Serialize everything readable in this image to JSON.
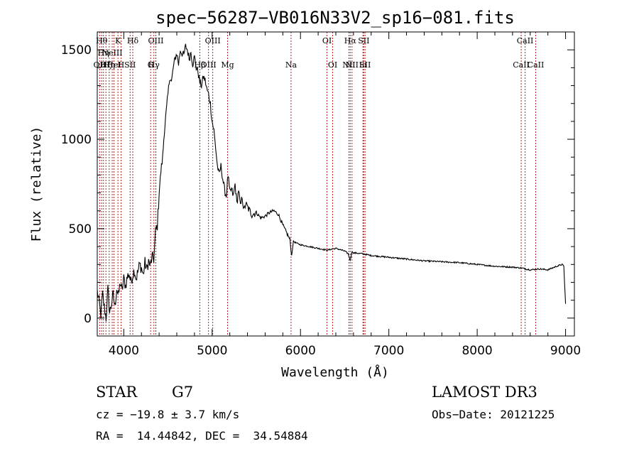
{
  "chart_data": {
    "type": "line",
    "title": "spec−56287−VB016N33V2_sp16−081.fits",
    "xlabel": "Wavelength (Å)",
    "ylabel": "Flux (relative)",
    "xlim": [
      3700,
      9100
    ],
    "ylim": [
      -100,
      1600
    ],
    "xticks": [
      4000,
      5000,
      6000,
      7000,
      8000,
      9000
    ],
    "yticks": [
      0,
      500,
      1000,
      1500
    ],
    "grid": false,
    "series": [
      {
        "name": "flux",
        "x": [
          3700,
          3720,
          3740,
          3760,
          3780,
          3800,
          3820,
          3840,
          3860,
          3880,
          3900,
          3920,
          3940,
          3960,
          3980,
          4000,
          4020,
          4040,
          4060,
          4080,
          4100,
          4120,
          4140,
          4160,
          4180,
          4200,
          4220,
          4240,
          4260,
          4280,
          4300,
          4320,
          4340,
          4360,
          4380,
          4400,
          4420,
          4440,
          4460,
          4480,
          4500,
          4520,
          4540,
          4560,
          4580,
          4600,
          4620,
          4640,
          4660,
          4680,
          4700,
          4720,
          4740,
          4760,
          4780,
          4800,
          4820,
          4840,
          4860,
          4880,
          4900,
          4920,
          4940,
          4960,
          4980,
          5000,
          5020,
          5040,
          5060,
          5080,
          5100,
          5120,
          5140,
          5160,
          5180,
          5200,
          5220,
          5240,
          5260,
          5280,
          5300,
          5320,
          5340,
          5360,
          5380,
          5400,
          5450,
          5500,
          5550,
          5600,
          5650,
          5700,
          5750,
          5800,
          5850,
          5880,
          5900,
          5920,
          5950,
          6000,
          6100,
          6200,
          6300,
          6400,
          6500,
          6540,
          6563,
          6580,
          6600,
          6700,
          6800,
          7000,
          7200,
          7400,
          7600,
          7800,
          8000,
          8200,
          8400,
          8500,
          8600,
          8700,
          8800,
          8900,
          8960,
          8980,
          9000
        ],
        "values": [
          150,
          90,
          20,
          130,
          60,
          0,
          160,
          30,
          80,
          130,
          60,
          170,
          120,
          200,
          150,
          220,
          180,
          230,
          250,
          200,
          240,
          270,
          220,
          260,
          300,
          280,
          240,
          310,
          270,
          320,
          290,
          340,
          330,
          480,
          520,
          700,
          820,
          900,
          1050,
          1150,
          1250,
          1350,
          1320,
          1400,
          1450,
          1480,
          1420,
          1500,
          1480,
          1470,
          1520,
          1500,
          1450,
          1490,
          1420,
          1460,
          1400,
          1380,
          1320,
          1300,
          1350,
          1330,
          1280,
          1250,
          1200,
          1100,
          1050,
          950,
          850,
          800,
          850,
          780,
          720,
          680,
          800,
          700,
          720,
          680,
          750,
          640,
          720,
          620,
          680,
          600,
          640,
          620,
          580,
          590,
          560,
          570,
          590,
          600,
          580,
          520,
          470,
          440,
          350,
          430,
          420,
          410,
          400,
          390,
          380,
          390,
          375,
          360,
          320,
          370,
          365,
          360,
          350,
          340,
          330,
          320,
          315,
          310,
          300,
          290,
          285,
          280,
          270,
          275,
          270,
          290,
          300,
          290,
          80
        ]
      }
    ],
    "lines": [
      {
        "wl": 3727,
        "labels": [
          "OII"
        ],
        "rows": [
          2
        ]
      },
      {
        "wl": 3750,
        "labels": [
          "Hθ"
        ],
        "rows": [
          0
        ]
      },
      {
        "wl": 3770,
        "labels": [
          "Hη"
        ],
        "rows": [
          1
        ]
      },
      {
        "wl": 3798,
        "labels": [
          "Hζ"
        ],
        "rows": [
          2
        ]
      },
      {
        "wl": 3835,
        "labels": [
          "Hη"
        ],
        "rows": [
          3
        ]
      },
      {
        "wl": 3869,
        "labels": [
          "NeIII"
        ],
        "rows": [
          1
        ]
      },
      {
        "wl": 3889,
        "labels": [
          "HeI"
        ],
        "rows": [
          2
        ]
      },
      {
        "wl": 3934,
        "labels": [
          "K"
        ],
        "rows": [
          0
        ]
      },
      {
        "wl": 3969,
        "labels": [
          "H"
        ],
        "rows": [
          3
        ]
      },
      {
        "wl": 4072,
        "labels": [
          "SII"
        ],
        "rows": [
          2
        ]
      },
      {
        "wl": 4102,
        "labels": [
          "Hδ"
        ],
        "rows": [
          0
        ]
      },
      {
        "wl": 4304,
        "labels": [
          "G"
        ],
        "rows": [
          3
        ]
      },
      {
        "wl": 4341,
        "labels": [
          "Hγ"
        ],
        "rows": [
          2
        ]
      },
      {
        "wl": 4363,
        "labels": [
          "OIII"
        ],
        "rows": [
          0
        ]
      },
      {
        "wl": 4861,
        "labels": [
          "Hβ"
        ],
        "rows": [
          3
        ]
      },
      {
        "wl": 4959,
        "labels": [
          "OIII"
        ],
        "rows": [
          2
        ]
      },
      {
        "wl": 5007,
        "labels": [
          "OIII"
        ],
        "rows": [
          0
        ]
      },
      {
        "wl": 5175,
        "labels": [
          "Mg"
        ],
        "rows": [
          3
        ]
      },
      {
        "wl": 5893,
        "labels": [
          "Na"
        ],
        "rows": [
          2
        ]
      },
      {
        "wl": 6300,
        "labels": [
          "OI"
        ],
        "rows": [
          0
        ]
      },
      {
        "wl": 6364,
        "labels": [
          "OI"
        ],
        "rows": [
          3
        ]
      },
      {
        "wl": 6548,
        "labels": [
          "NII"
        ],
        "rows": [
          2
        ]
      },
      {
        "wl": 6563,
        "labels": [
          "Hα"
        ],
        "rows": [
          0
        ]
      },
      {
        "wl": 6583,
        "labels": [
          "NII"
        ],
        "rows": [
          3
        ]
      },
      {
        "wl": 6707,
        "labels": [
          "Li"
        ],
        "rows": [
          2
        ]
      },
      {
        "wl": 6716,
        "labels": [
          "SII"
        ],
        "rows": [
          0
        ]
      },
      {
        "wl": 6731,
        "labels": [
          "SII"
        ],
        "rows": [
          3
        ]
      },
      {
        "wl": 8498,
        "labels": [
          "CaII"
        ],
        "rows": [
          2
        ]
      },
      {
        "wl": 8542,
        "labels": [
          "CaII"
        ],
        "rows": [
          0
        ]
      },
      {
        "wl": 8662,
        "labels": [
          "CaII"
        ],
        "rows": [
          3
        ]
      }
    ]
  },
  "footer": {
    "class": "STAR",
    "subclass": "G7",
    "survey": "LAMOST DR3",
    "cz": "cz = −19.8 ± 3.7 km/s",
    "obs_date": "Obs−Date: 20121225",
    "coords": "RA =  14.44842, DEC =  34.54884"
  },
  "colors": {
    "line": "#b22222",
    "axis": "#000000",
    "spectrum": "#000000"
  }
}
